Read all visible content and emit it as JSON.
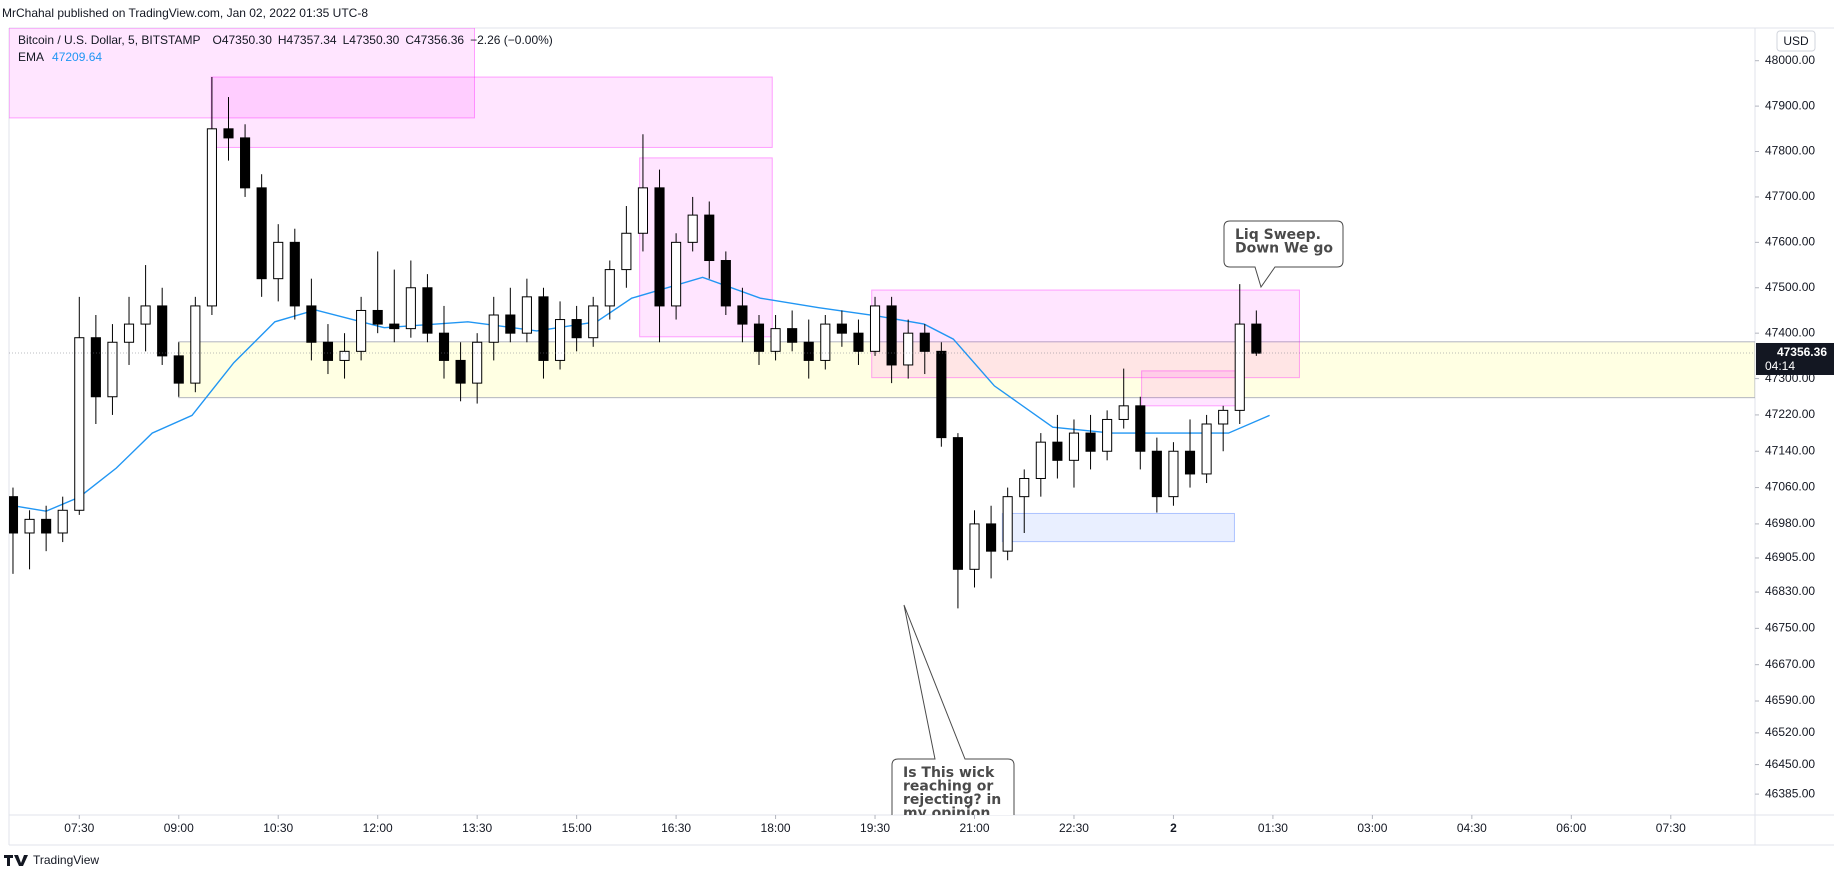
{
  "chart_data": {
    "type": "candlestick",
    "header": "MrChahal published on TradingView.com, Jan 02, 2022 01:35 UTC-8",
    "title": "Bitcoin / U.S. Dollar, 5, BITSTAMP",
    "ohlc_labels": [
      "O47350.30",
      "H47357.34",
      "L47350.30",
      "C47356.36"
    ],
    "change_label": "−2.26 (−0.00%)",
    "currency": "USD",
    "footer": "TradingView",
    "last_price": 47356.36,
    "countdown": "04:14",
    "up_color": "#ffffff",
    "down_color": "#000000",
    "x": [
      6.5,
      6.75,
      7,
      7.25,
      7.5,
      7.75,
      8,
      8.25,
      8.5,
      8.75,
      9,
      9.25,
      9.5,
      9.75,
      10,
      10.25,
      10.5,
      10.75,
      11,
      11.25,
      11.5,
      11.75,
      12,
      12.25,
      12.5,
      12.75,
      13,
      13.25,
      13.5,
      13.75,
      14,
      14.25,
      14.5,
      14.75,
      15,
      15.25,
      15.5,
      15.75,
      16,
      16.25,
      16.5,
      16.75,
      17,
      17.25,
      17.5,
      17.75,
      18,
      18.25,
      18.5,
      18.75,
      19,
      19.25,
      19.5,
      19.75,
      20,
      20.25,
      20.5,
      20.75,
      21,
      21.25,
      21.5,
      21.75,
      22,
      22.25,
      22.5,
      22.75,
      23,
      23.25,
      23.5,
      23.75,
      24,
      24.25,
      24.5,
      24.75,
      25,
      25.25
    ],
    "open": [
      47040,
      46960,
      46990,
      46960,
      47010,
      47390,
      47260,
      47380,
      47420,
      47460,
      47350,
      47290,
      47460,
      47850,
      47830,
      47720,
      47520,
      47600,
      47460,
      47380,
      47340,
      47360,
      47450,
      47420,
      47410,
      47500,
      47400,
      47340,
      47290,
      47380,
      47440,
      47400,
      47480,
      47340,
      47430,
      47390,
      47460,
      47540,
      47620,
      47720,
      47460,
      47600,
      47660,
      47560,
      47460,
      47420,
      47360,
      47410,
      47380,
      47340,
      47420,
      47400,
      47360,
      47460,
      47330,
      47400,
      47360,
      47170,
      46880,
      46980,
      46920,
      47040,
      47080,
      47160,
      47120,
      47180,
      47140,
      47210,
      47240,
      47140,
      47040,
      47140,
      47090,
      47200,
      47230,
      47420
    ],
    "high": [
      47060,
      47010,
      47020,
      47040,
      47480,
      47440,
      47420,
      47480,
      47550,
      47500,
      47380,
      47480,
      47964,
      47920,
      47860,
      47750,
      47640,
      47630,
      47520,
      47420,
      47400,
      47480,
      47580,
      47540,
      47560,
      47530,
      47460,
      47380,
      47400,
      47480,
      47500,
      47520,
      47500,
      47470,
      47460,
      47480,
      47560,
      47680,
      47838,
      47760,
      47620,
      47700,
      47690,
      47580,
      47500,
      47440,
      47440,
      47450,
      47430,
      47440,
      47450,
      47430,
      47480,
      47480,
      47430,
      47420,
      47380,
      47180,
      47010,
      47020,
      47060,
      47100,
      47180,
      47220,
      47210,
      47220,
      47230,
      47322,
      47260,
      47170,
      47160,
      47210,
      47220,
      47240,
      47508,
      47450
    ],
    "low": [
      46870,
      46880,
      46920,
      46940,
      47000,
      47200,
      47220,
      47330,
      47360,
      47330,
      47260,
      47270,
      47440,
      47780,
      47700,
      47480,
      47470,
      47430,
      47340,
      47310,
      47300,
      47340,
      47400,
      47380,
      47390,
      47380,
      47300,
      47250,
      47245,
      47340,
      47380,
      47380,
      47300,
      47320,
      47360,
      47370,
      47430,
      47500,
      47580,
      47380,
      47430,
      47580,
      47520,
      47440,
      47380,
      47330,
      47340,
      47360,
      47300,
      47320,
      47370,
      47330,
      47350,
      47290,
      47300,
      47310,
      47150,
      46794,
      46840,
      46860,
      46900,
      46960,
      47040,
      47080,
      47060,
      47100,
      47120,
      47190,
      47100,
      47005,
      47020,
      47060,
      47070,
      47140,
      47200,
      47350
    ],
    "close": [
      46960,
      46990,
      46960,
      47010,
      47390,
      47260,
      47380,
      47420,
      47460,
      47350,
      47290,
      47460,
      47850,
      47830,
      47720,
      47520,
      47600,
      47460,
      47380,
      47340,
      47360,
      47450,
      47420,
      47410,
      47500,
      47400,
      47340,
      47290,
      47380,
      47440,
      47400,
      47480,
      47340,
      47430,
      47390,
      47460,
      47540,
      47620,
      47720,
      47460,
      47600,
      47660,
      47560,
      47460,
      47420,
      47360,
      47410,
      47380,
      47340,
      47420,
      47400,
      47360,
      47460,
      47330,
      47400,
      47360,
      47170,
      46880,
      46980,
      46920,
      47040,
      47080,
      47160,
      47120,
      47180,
      47140,
      47210,
      47240,
      47140,
      47040,
      47140,
      47090,
      47200,
      47230,
      47420,
      47356
    ],
    "ema": {
      "name": "EMA",
      "current": 47209.64,
      "color": "#2196f3",
      "x": [
        6.5,
        7,
        7.5,
        8.06,
        8.6,
        9.2,
        9.83,
        10.45,
        11.06,
        12.1,
        13.36,
        14.4,
        15.3,
        15.83,
        16.9,
        17.77,
        18.65,
        19.53,
        20.24,
        20.68,
        21.3,
        22.18,
        23.06,
        23.95,
        24.83,
        25.45
      ],
      "values": [
        47020,
        47008,
        47039,
        47103,
        47180,
        47219,
        47335,
        47425,
        47451,
        47412,
        47425,
        47405,
        47425,
        47477,
        47523,
        47477,
        47456,
        47438,
        47420,
        47387,
        47284,
        47193,
        47180,
        47180,
        47180,
        47219
      ]
    },
    "zones": [
      {
        "x": [
          6.44,
          13.46
        ],
        "y": [
          47874,
          48072
        ],
        "color": "#ff00ff"
      },
      {
        "x": [
          9.49,
          17.95
        ],
        "y": [
          47809,
          47964
        ],
        "color": "#ff00ff"
      },
      {
        "x": [
          15.95,
          17.95
        ],
        "y": [
          47392,
          47786
        ],
        "color": "#ff00ff"
      },
      {
        "x": [
          9.0,
          32.77
        ],
        "y": [
          47258,
          47381
        ],
        "color": "#ffff66"
      },
      {
        "x": [
          19.45,
          25.9
        ],
        "y": [
          47302,
          47495
        ],
        "color": "#ff00ff"
      },
      {
        "x": [
          23.52,
          25.06
        ],
        "y": [
          47240,
          47317
        ],
        "color": "#ff00ff"
      },
      {
        "x": [
          21.42,
          24.92
        ],
        "y": [
          46941,
          47003
        ],
        "color": "#2962ff"
      }
    ],
    "annotations": [
      {
        "lines": [
          "Liq Sweep.",
          "Down We go"
        ]
      },
      {
        "lines": [
          "Is This wick",
          "reaching or",
          "rejecting? in",
          "my opinion"
        ]
      }
    ],
    "xlim": [
      6.44,
      32.77
    ],
    "xticks": [
      {
        "value": 7.5,
        "label": "07:30"
      },
      {
        "value": 9,
        "label": "09:00"
      },
      {
        "value": 10.5,
        "label": "10:30"
      },
      {
        "value": 12,
        "label": "12:00"
      },
      {
        "value": 13.5,
        "label": "13:30"
      },
      {
        "value": 15,
        "label": "15:00"
      },
      {
        "value": 16.5,
        "label": "16:30"
      },
      {
        "value": 18,
        "label": "18:00"
      },
      {
        "value": 19.5,
        "label": "19:30"
      },
      {
        "value": 21,
        "label": "21:00"
      },
      {
        "value": 22.5,
        "label": "22:30"
      },
      {
        "value": 24,
        "label": "2"
      },
      {
        "value": 25.5,
        "label": "01:30"
      },
      {
        "value": 27,
        "label": "03:00"
      },
      {
        "value": 28.5,
        "label": "04:30"
      },
      {
        "value": 30,
        "label": "06:00"
      },
      {
        "value": 31.5,
        "label": "07:30"
      }
    ],
    "ylim": [
      46339,
      48072
    ],
    "yticks": [
      {
        "value": 48000,
        "label": "48000.00"
      },
      {
        "value": 47900,
        "label": "47900.00"
      },
      {
        "value": 47800,
        "label": "47800.00"
      },
      {
        "value": 47700,
        "label": "47700.00"
      },
      {
        "value": 47600,
        "label": "47600.00"
      },
      {
        "value": 47500,
        "label": "47500.00"
      },
      {
        "value": 47400,
        "label": "47400.00"
      },
      {
        "value": 47300,
        "label": "47300.00"
      },
      {
        "value": 47220,
        "label": "47220.00"
      },
      {
        "value": 47140,
        "label": "47140.00"
      },
      {
        "value": 47060,
        "label": "47060.00"
      },
      {
        "value": 46980,
        "label": "46980.00"
      },
      {
        "value": 46905,
        "label": "46905.00"
      },
      {
        "value": 46830,
        "label": "46830.00"
      },
      {
        "value": 46750,
        "label": "46750.00"
      },
      {
        "value": 46670,
        "label": "46670.00"
      },
      {
        "value": 46590,
        "label": "46590.00"
      },
      {
        "value": 46520,
        "label": "46520.00"
      },
      {
        "value": 46450,
        "label": "46450.00"
      },
      {
        "value": 46385,
        "label": "46385.00"
      }
    ],
    "grid": false
  }
}
